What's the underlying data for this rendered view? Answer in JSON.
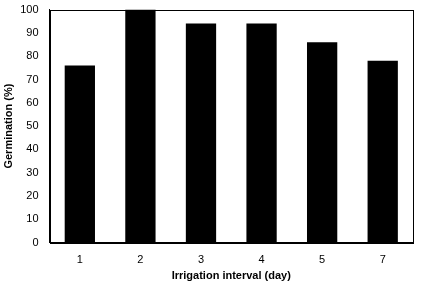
{
  "chart_data": {
    "type": "bar",
    "x_label": "Irrigation interval (day)",
    "y_label": "Germination (%)",
    "categories": [
      "1",
      "2",
      "3",
      "4",
      "5",
      "7"
    ],
    "values": [
      76,
      100,
      94,
      94,
      86,
      78
    ],
    "color": "#000000",
    "ylim": [
      0,
      100
    ],
    "yticks": [
      0,
      10,
      20,
      30,
      40,
      50,
      60,
      70,
      80,
      90,
      100
    ],
    "grid": false
  }
}
